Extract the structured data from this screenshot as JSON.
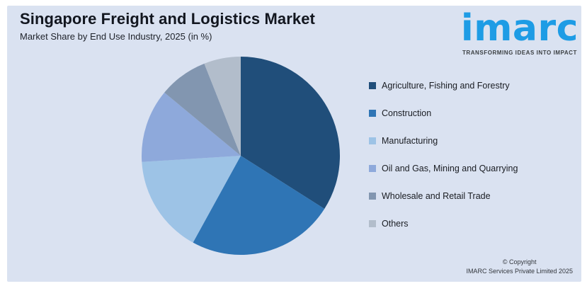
{
  "header": {
    "title": "Singapore Freight and Logistics Market",
    "subtitle": "Market Share by End Use Industry, 2025 (in %)"
  },
  "logo": {
    "brand": "imarc",
    "tagline": "TRANSFORMING IDEAS INTO IMPACT",
    "brand_color": "#1E9CE5"
  },
  "footer": {
    "copyright_line1": "© Copyright",
    "copyright_line2": "IMARC Services Private Limited 2025"
  },
  "colors": {
    "panel_background": "#DAE2F1",
    "frame": "#FFFFFF",
    "title_text": "#12161F"
  },
  "chart_data": {
    "type": "pie",
    "title": "Singapore Freight and Logistics Market",
    "subtitle": "Market Share by End Use Industry, 2025 (in %)",
    "unit": "%",
    "start_angle_deg": 0,
    "direction": "clockwise",
    "legend_position": "right",
    "data_labels_shown": false,
    "note": "No numeric labels visible; values estimated from slice angles",
    "slices": [
      {
        "label": "Agriculture, Fishing and Forestry",
        "value": 34,
        "color": "#204E7A"
      },
      {
        "label": "Construction",
        "value": 24,
        "color": "#2F75B5"
      },
      {
        "label": "Manufacturing",
        "value": 16,
        "color": "#9DC3E6"
      },
      {
        "label": "Oil and Gas, Mining and Quarrying",
        "value": 12,
        "color": "#8EA9DB"
      },
      {
        "label": "Wholesale and Retail Trade",
        "value": 8,
        "color": "#8296B0"
      },
      {
        "label": "Others",
        "value": 6,
        "color": "#B2BDCB"
      }
    ]
  }
}
